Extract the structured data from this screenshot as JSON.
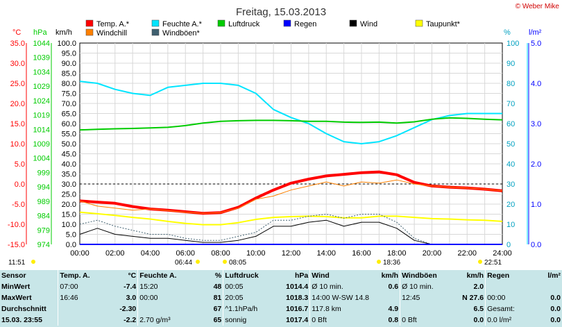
{
  "header": {
    "title": "Freitag, 15.03.2013",
    "copyright": "© Weber Mike"
  },
  "legend": [
    {
      "label": "Temp. A.*",
      "color": "#ff0000"
    },
    {
      "label": "Feuchte A.*",
      "color": "#00e5ff"
    },
    {
      "label": "Luftdruck",
      "color": "#00cc00"
    },
    {
      "label": "Regen",
      "color": "#0000ff"
    },
    {
      "label": "Wind",
      "color": "#000000"
    },
    {
      "label": "Taupunkt*",
      "color": "#ffff00"
    },
    {
      "label": "Windchill",
      "color": "#ff8000"
    },
    {
      "label": "Windböen*",
      "color": "#406070"
    }
  ],
  "axes_units": {
    "temp": "°C",
    "press": "hPa",
    "wind": "km/h",
    "hum": "%",
    "rain": "l/m²"
  },
  "chart_data": {
    "type": "line",
    "title": "Freitag, 15.03.2013",
    "x": [
      "00:00",
      "01:00",
      "02:00",
      "03:00",
      "04:00",
      "05:00",
      "06:00",
      "07:00",
      "08:00",
      "09:00",
      "10:00",
      "11:00",
      "12:00",
      "13:00",
      "14:00",
      "15:00",
      "16:00",
      "17:00",
      "18:00",
      "19:00",
      "20:00",
      "21:00",
      "22:00",
      "23:00",
      "24:00"
    ],
    "xticks": [
      "00:00",
      "02:00",
      "04:00",
      "06:00",
      "08:00",
      "10:00",
      "12:00",
      "14:00",
      "16:00",
      "18:00",
      "20:00",
      "22:00",
      "24:00"
    ],
    "axes": {
      "temp": {
        "label": "°C",
        "ylim": [
          -15,
          35
        ],
        "ticks": [
          "35.0",
          "30.0",
          "25.0",
          "20.0",
          "15.0",
          "10.0",
          "5.0",
          "0.0",
          "-5.0",
          "-10.0",
          "-15.0"
        ],
        "color": "#ff0000"
      },
      "pressure": {
        "label": "hPa",
        "ylim": [
          974,
          1044
        ],
        "ticks": [
          "1044",
          "1039",
          "1034",
          "1029",
          "1024",
          "1019",
          "1014",
          "1009",
          "1004",
          "999",
          "994",
          "989",
          "984",
          "979",
          "974"
        ],
        "color": "#00cc00"
      },
      "wind": {
        "label": "km/h",
        "ylim": [
          0,
          100
        ],
        "ticks": [
          "100.0",
          "95.0",
          "90.0",
          "85.0",
          "80.0",
          "75.0",
          "70.0",
          "65.0",
          "60.0",
          "55.0",
          "50.0",
          "45.0",
          "40.0",
          "35.0",
          "30.0",
          "25.0",
          "20.0",
          "15.0",
          "10.0",
          "5.0",
          "0.0"
        ],
        "color": "#000000"
      },
      "humidity": {
        "label": "%",
        "ylim": [
          0,
          100
        ],
        "ticks": [
          "100",
          "90",
          "80",
          "70",
          "60",
          "50",
          "40",
          "30",
          "20",
          "10",
          "0"
        ],
        "color": "#00e5ff"
      },
      "rain": {
        "label": "l/m²",
        "ylim": [
          0,
          5
        ],
        "ticks": [
          "5.0",
          "4.0",
          "3.0",
          "2.0",
          "1.0",
          "0.0"
        ],
        "color": "#0000ff"
      }
    },
    "grid": true,
    "series": [
      {
        "name": "Temp. A.*",
        "axis": "temp",
        "color": "#ff0000",
        "values": [
          -4.2,
          -4.5,
          -4.8,
          -5.6,
          -6.2,
          -6.5,
          -6.9,
          -7.3,
          -7.1,
          -5.8,
          -3.5,
          -1.5,
          0.2,
          1.2,
          2.0,
          2.4,
          2.8,
          3.0,
          2.3,
          0.4,
          -0.5,
          -0.8,
          -1.0,
          -1.3,
          -1.7
        ]
      },
      {
        "name": "Feuchte A.*",
        "axis": "humidity",
        "color": "#00e5ff",
        "values": [
          81,
          80,
          77,
          75,
          74,
          78,
          79,
          80,
          80,
          79,
          75,
          67,
          63,
          60,
          55,
          51,
          50,
          51,
          54,
          58,
          62,
          64,
          65,
          65,
          65
        ]
      },
      {
        "name": "Luftdruck",
        "axis": "pressure",
        "color": "#00cc00",
        "values": [
          1013.8,
          1014.0,
          1014.2,
          1014.3,
          1014.5,
          1014.7,
          1015.3,
          1016.2,
          1016.8,
          1017.0,
          1017.1,
          1017.1,
          1017.0,
          1016.8,
          1016.8,
          1016.5,
          1016.4,
          1016.5,
          1016.2,
          1016.6,
          1017.5,
          1018.0,
          1017.8,
          1017.5,
          1017.3
        ]
      },
      {
        "name": "Taupunkt*",
        "axis": "temp",
        "color": "#ffff00",
        "values": [
          -7.0,
          -7.4,
          -7.8,
          -8.3,
          -8.7,
          -9.3,
          -9.8,
          -10.1,
          -10.1,
          -9.6,
          -8.8,
          -8.3,
          -8.1,
          -8.0,
          -8.1,
          -8.4,
          -8.4,
          -8.0,
          -8.0,
          -8.3,
          -8.6,
          -8.7,
          -8.9,
          -9.0,
          -9.3
        ]
      },
      {
        "name": "Windchill",
        "axis": "temp",
        "color": "#ff8000",
        "values": [
          -4.2,
          -5.5,
          -6.0,
          -6.5,
          -6.2,
          -6.6,
          -7.0,
          -7.3,
          -7.1,
          -6.0,
          -3.8,
          -3.0,
          -1.5,
          -0.5,
          0.5,
          -0.5,
          0.5,
          0.2,
          1.0,
          0.0,
          -0.5,
          -0.8,
          -1.0,
          -1.3,
          -1.7
        ]
      },
      {
        "name": "Wind",
        "axis": "wind",
        "color": "#000000",
        "values": [
          5,
          8,
          5,
          4,
          3,
          3,
          2,
          1,
          1,
          2,
          4,
          9,
          9,
          11,
          12,
          9,
          11,
          11,
          8,
          2,
          0,
          0,
          0,
          0,
          0
        ]
      },
      {
        "name": "Windböen*",
        "axis": "wind",
        "color": "#406070",
        "values": [
          10,
          12,
          9,
          7,
          5,
          5,
          3,
          2,
          2,
          4,
          6,
          12,
          12,
          14,
          15,
          13,
          15,
          15,
          11,
          3,
          0,
          0,
          0,
          0,
          0
        ]
      },
      {
        "name": "Regen",
        "axis": "rain",
        "color": "#0000ff",
        "values": [
          0,
          0,
          0,
          0,
          0,
          0,
          0,
          0,
          0,
          0,
          0,
          0,
          0,
          0,
          0,
          0,
          0,
          0,
          0,
          0,
          0,
          0,
          0,
          0,
          0
        ]
      }
    ],
    "annotations": [
      "11:51",
      "06:44",
      "08:05",
      "18:36",
      "22:51"
    ]
  },
  "stats": {
    "headers": [
      {
        "name": "Sensor",
        "unit": ""
      },
      {
        "name": "Temp. A.",
        "unit": "°C"
      },
      {
        "name": "Feuchte A.",
        "unit": "%"
      },
      {
        "name": "Luftdruck",
        "unit": "hPa"
      },
      {
        "name": "Wind",
        "unit": "km/h"
      },
      {
        "name": "Windböen",
        "unit": "km/h"
      },
      {
        "name": "Regen",
        "unit": "l/m²"
      }
    ],
    "rows": [
      {
        "label": "MinWert",
        "temp_time": "07:00",
        "temp": "-7.4",
        "hum_time": "15:20",
        "hum": "48",
        "press_time": "00:05",
        "press": "1014.4",
        "wind_time": "Ø 10 min.",
        "wind": "0.6",
        "gust_time": "Ø 10 min.",
        "gust": "2.0",
        "rain_time": "",
        "rain": ""
      },
      {
        "label": "MaxWert",
        "temp_time": "16:46",
        "temp": "3.0",
        "hum_time": "00:00",
        "hum": "81",
        "press_time": "20:05",
        "press": "1018.3",
        "wind_time": "14:00   W-SW 14.8",
        "wind": "",
        "gust_time": "12:45",
        "gust": "N 27.6",
        "rain_time": "00:00",
        "rain": "0.0"
      },
      {
        "label": "Durchschnitt",
        "temp_time": "",
        "temp": "-2.30",
        "hum_time": "",
        "hum": "67",
        "press_time": "^1.1hPa/h",
        "press": "1016.7",
        "wind_time": "117.8 km",
        "wind": "4.9",
        "gust_time": "",
        "gust": "6.5",
        "rain_time": "Gesamt:",
        "rain": "0.0"
      },
      {
        "label": "15.03.  23:55",
        "temp_time": "",
        "temp": "-2.2",
        "hum_time": "2.70 g/m³",
        "hum": "65",
        "press_time": "sonnig",
        "press": "1017.4",
        "wind_time": "0 Bft",
        "wind": "0.8",
        "gust_time": "0 Bft",
        "gust": "0.0",
        "rain_time": "0.0 l/m²",
        "rain": "0.0"
      }
    ]
  }
}
